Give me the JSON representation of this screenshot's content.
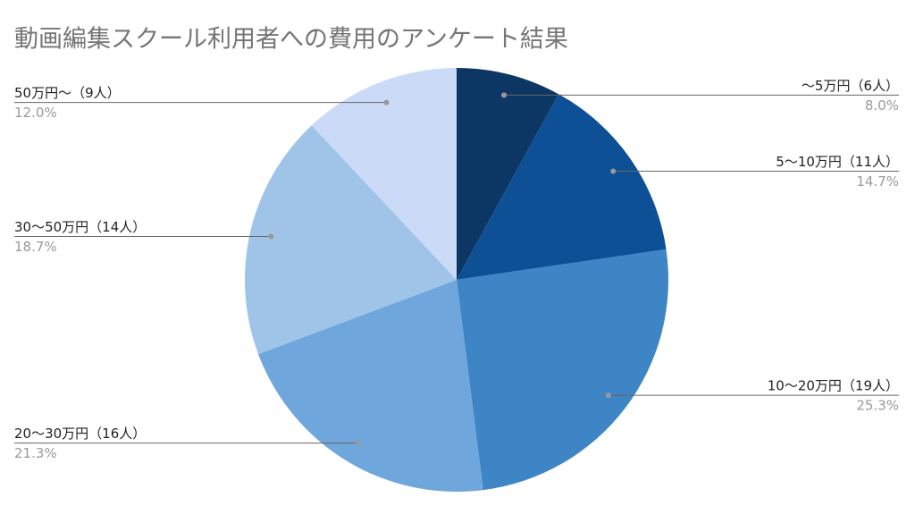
{
  "chart_data": {
    "type": "pie",
    "title": "動画編集スクール利用者への費用のアンケート結果",
    "categories": [
      "〜5万円（6人）",
      "5〜10万円（11人）",
      "10〜20万円（19人）",
      "20〜30万円（16人）",
      "30〜50万円（14人）",
      "50万円〜（9人）"
    ],
    "values": [
      8,
      14.7,
      25.3,
      21.3,
      18.7,
      12
    ],
    "value_labels": [
      "8.0%",
      "14.7%",
      "25.3%",
      "21.3%",
      "18.7%",
      "12.0%"
    ],
    "colors": [
      "#0c3765",
      "#0e5096",
      "#3e85c6",
      "#6fa6dc",
      "#9fc4e8",
      "#cbdbf7"
    ]
  }
}
